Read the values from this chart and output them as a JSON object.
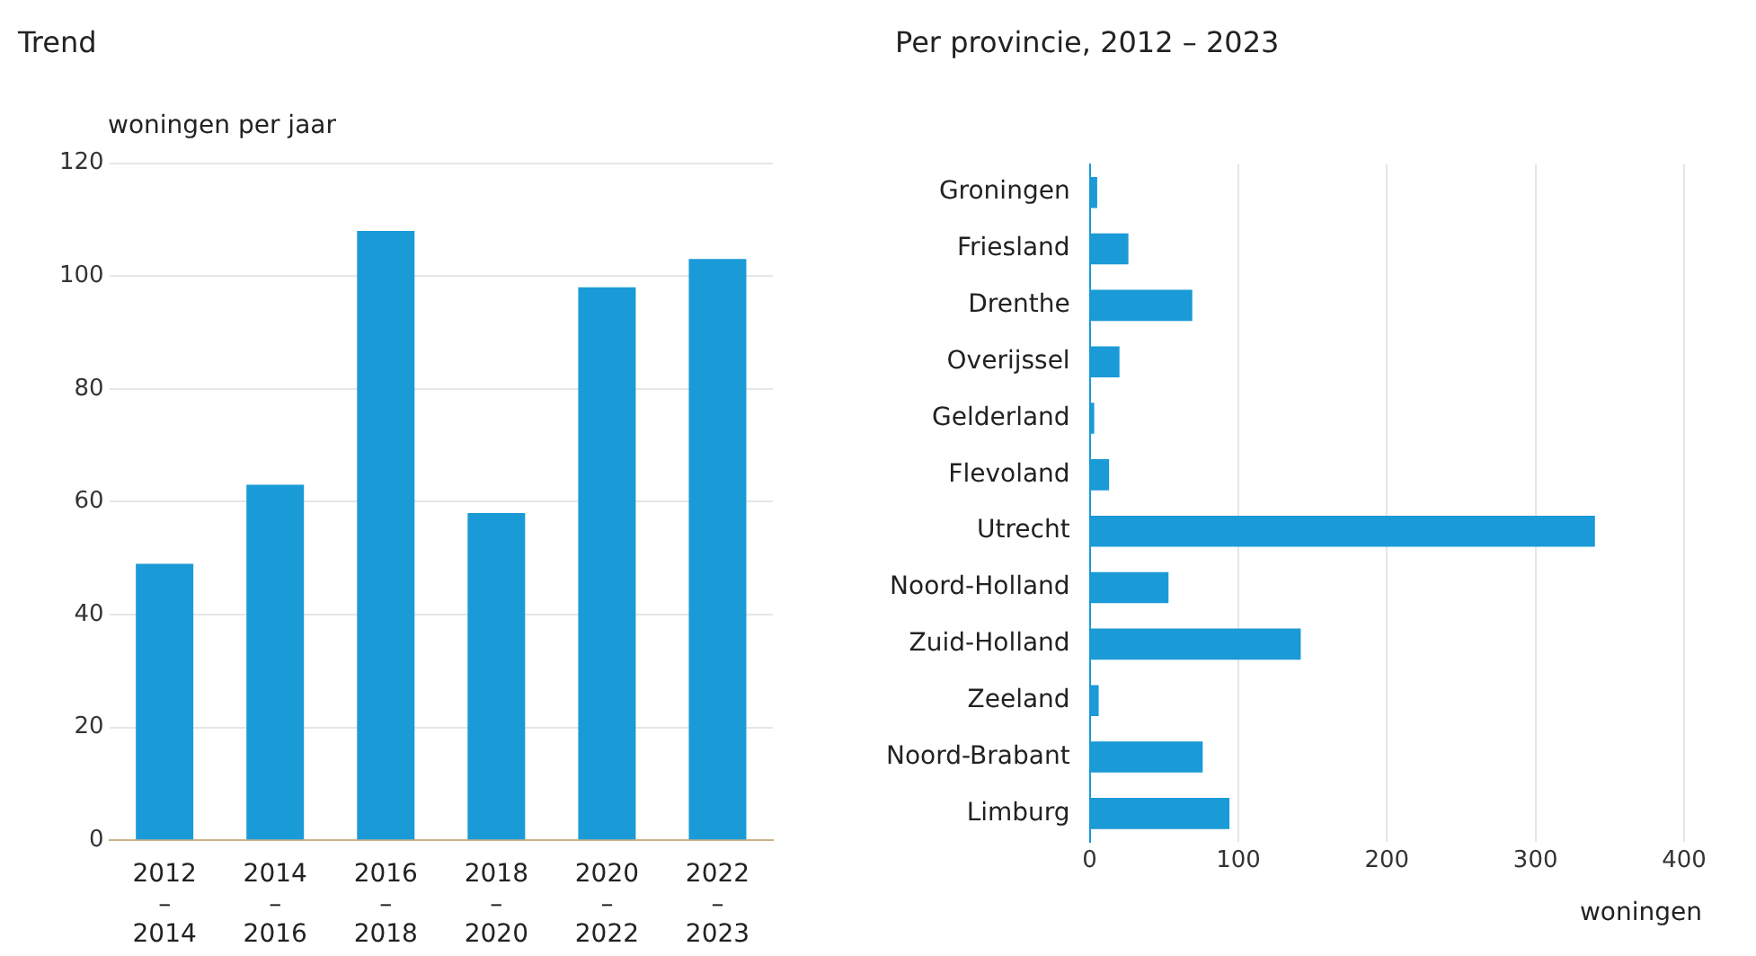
{
  "chart_data": [
    {
      "type": "bar",
      "title": "Trend",
      "ylabel": "woningen per jaar",
      "categories": [
        "2012 – 2014",
        "2014 – 2016",
        "2016 – 2018",
        "2018 – 2020",
        "2020 – 2022",
        "2022 – 2023"
      ],
      "values": [
        49,
        63,
        108,
        58,
        98,
        103
      ],
      "color": "#1a9ad6",
      "ylim": [
        0,
        120
      ],
      "yticks": [
        0,
        20,
        40,
        60,
        80,
        100,
        120
      ],
      "grid": "y"
    },
    {
      "type": "bar",
      "orientation": "horizontal",
      "title": "Per provincie, 2012 – 2023",
      "xlabel": "woningen",
      "categories": [
        "Groningen",
        "Friesland",
        "Drenthe",
        "Overijssel",
        "Gelderland",
        "Flevoland",
        "Utrecht",
        "Noord-Holland",
        "Zuid-Holland",
        "Zeeland",
        "Noord-Brabant",
        "Limburg"
      ],
      "values": [
        5,
        26,
        69,
        20,
        3,
        13,
        340,
        53,
        142,
        6,
        76,
        94
      ],
      "color": "#1a9ad6",
      "xlim": [
        0,
        400
      ],
      "xticks": [
        0,
        100,
        200,
        300,
        400
      ],
      "grid": "x"
    }
  ]
}
